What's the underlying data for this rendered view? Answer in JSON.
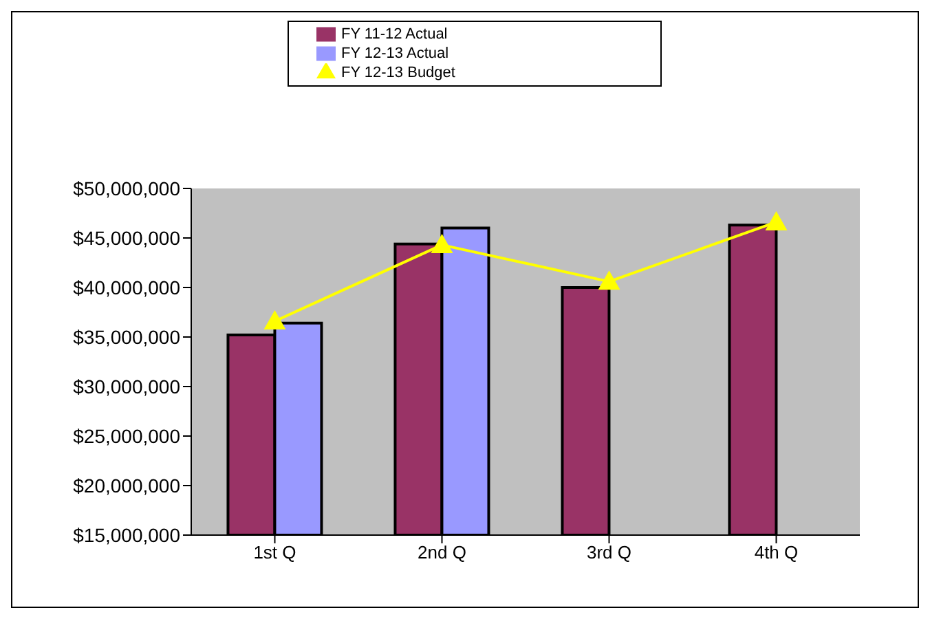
{
  "chart_data": {
    "type": "bar",
    "categories": [
      "1st Q",
      "2nd Q",
      "3rd Q",
      "4th Q"
    ],
    "series": [
      {
        "name": "FY 11-12 Actual",
        "color": "#993366",
        "values": [
          35200000,
          44400000,
          40000000,
          46300000
        ]
      },
      {
        "name": "FY 12-13 Actual",
        "color": "#9999ff",
        "values": [
          36400000,
          46000000,
          null,
          null
        ]
      },
      {
        "name": "FY 12-13 Budget",
        "type": "line",
        "color": "#ffff00",
        "marker": "triangle",
        "values": [
          36600000,
          44300000,
          40600000,
          46600000
        ]
      }
    ],
    "ylim": [
      15000000,
      50000000
    ],
    "yticks": [
      {
        "value": 15000000,
        "label": "$15,000,000"
      },
      {
        "value": 20000000,
        "label": "$20,000,000"
      },
      {
        "value": 25000000,
        "label": "$25,000,000"
      },
      {
        "value": 30000000,
        "label": "$30,000,000"
      },
      {
        "value": 35000000,
        "label": "$35,000,000"
      },
      {
        "value": 40000000,
        "label": "$40,000,000"
      },
      {
        "value": 45000000,
        "label": "$45,000,000"
      },
      {
        "value": 50000000,
        "label": "$50,000,000"
      }
    ],
    "grid": false,
    "legend": "top"
  }
}
